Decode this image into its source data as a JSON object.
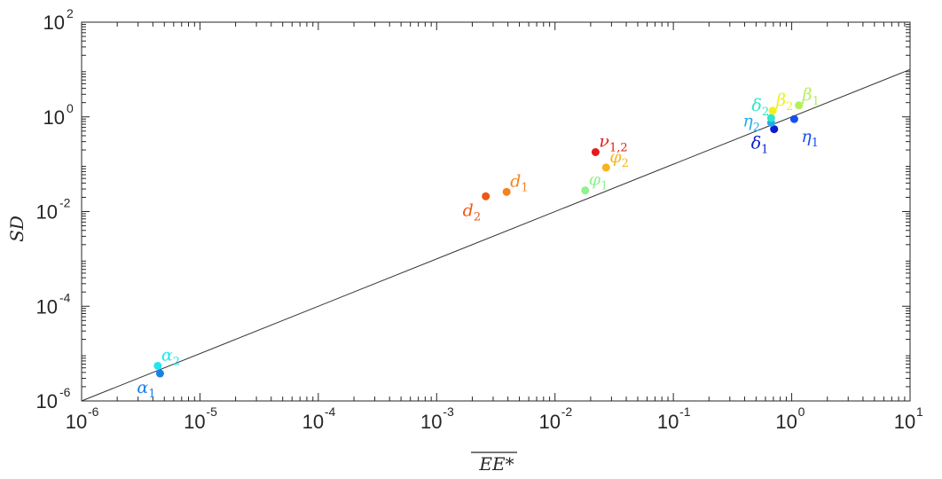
{
  "chart_data": {
    "type": "scatter",
    "title": "",
    "xlabel": "EE*",
    "ylabel": "SD",
    "xscale": "log",
    "yscale": "log",
    "xlim": [
      1e-06,
      10
    ],
    "ylim": [
      1e-06,
      100
    ],
    "x_ticks": [
      {
        "base": "10",
        "exp": "-6",
        "value": 1e-06
      },
      {
        "base": "10",
        "exp": "-5",
        "value": 1e-05
      },
      {
        "base": "10",
        "exp": "-4",
        "value": 0.0001
      },
      {
        "base": "10",
        "exp": "-3",
        "value": 0.001
      },
      {
        "base": "10",
        "exp": "-2",
        "value": 0.01
      },
      {
        "base": "10",
        "exp": "-1",
        "value": 0.1
      },
      {
        "base": "10",
        "exp": "0",
        "value": 1
      },
      {
        "base": "10",
        "exp": "1",
        "value": 10
      }
    ],
    "y_ticks": [
      {
        "base": "10",
        "exp": "-6",
        "value": 1e-06
      },
      {
        "base": "10",
        "exp": "-4",
        "value": 0.0001
      },
      {
        "base": "10",
        "exp": "-2",
        "value": 0.01
      },
      {
        "base": "10",
        "exp": "0",
        "value": 1
      },
      {
        "base": "10",
        "exp": "2",
        "value": 100
      }
    ],
    "grid": false,
    "legend": "none",
    "reference_line": {
      "x": [
        1e-06,
        10
      ],
      "y": [
        1e-06,
        10
      ],
      "color": "#333333"
    },
    "points": [
      {
        "sym": "α",
        "sub": "1",
        "x": 4.6e-06,
        "y": 3.8e-06,
        "color": "#1a80e6",
        "label_pos": "left-below"
      },
      {
        "sym": "α",
        "sub": "2",
        "x": 4.4e-06,
        "y": 5.5e-06,
        "color": "#22e6f2",
        "label_pos": "right-above"
      },
      {
        "sym": "d",
        "sub": "2",
        "x": 0.0026,
        "y": 0.021,
        "color": "#f05515",
        "label_pos": "left-below"
      },
      {
        "sym": "d",
        "sub": "1",
        "x": 0.0039,
        "y": 0.026,
        "color": "#f5821f",
        "label_pos": "right-above"
      },
      {
        "sym": "φ",
        "sub": "1",
        "x": 0.018,
        "y": 0.028,
        "color": "#8ef28e",
        "label_pos": "right-above"
      },
      {
        "sym": "φ",
        "sub": "2",
        "x": 0.027,
        "y": 0.085,
        "color": "#f5b41f",
        "label_pos": "right-above"
      },
      {
        "sym": "ν",
        "sub": "1,2",
        "x": 0.022,
        "y": 0.18,
        "color": "#e61a1a",
        "label_pos": "right-above"
      },
      {
        "sym": "δ",
        "sub": "1",
        "x": 0.71,
        "y": 0.55,
        "color": "#0a1ecc",
        "label_pos": "left-below"
      },
      {
        "sym": "η",
        "sub": "1",
        "x": 1.05,
        "y": 0.9,
        "color": "#1450f0",
        "label_pos": "right-below"
      },
      {
        "sym": "η",
        "sub": "2",
        "x": 0.67,
        "y": 0.75,
        "color": "#22aaf0",
        "label_pos": "left"
      },
      {
        "sym": "δ",
        "sub": "2",
        "x": 0.67,
        "y": 0.95,
        "color": "#2ee6c8",
        "label_pos": "left-above"
      },
      {
        "sym": "β",
        "sub": "2",
        "x": 0.69,
        "y": 1.35,
        "color": "#f0f01e",
        "label_pos": "right-above"
      },
      {
        "sym": "β",
        "sub": "1",
        "x": 1.15,
        "y": 1.75,
        "color": "#b4f05a",
        "label_pos": "right-above"
      }
    ]
  }
}
